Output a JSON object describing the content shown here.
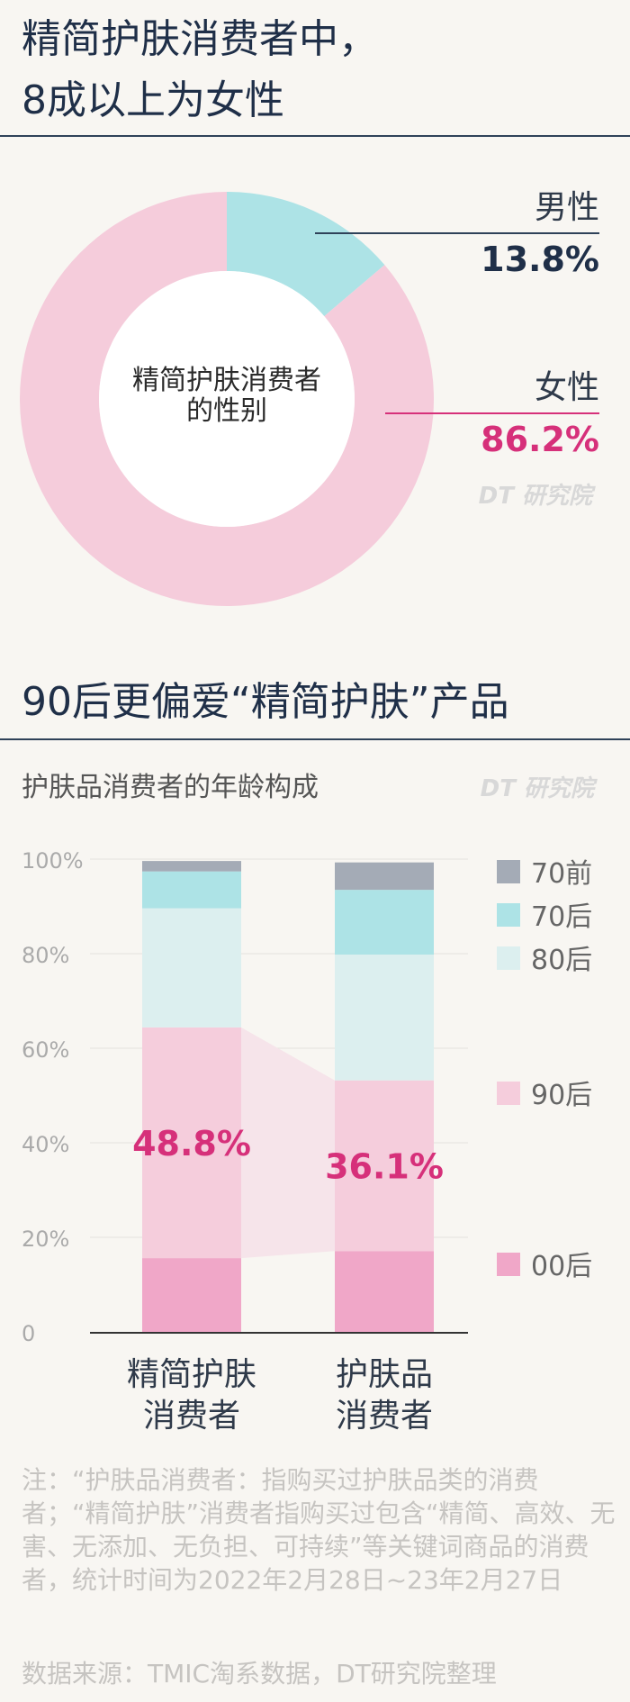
{
  "section1": {
    "title_line1": "精简护肤消费者中，",
    "title_line2": "8成以上为女性"
  },
  "donut": {
    "center_line1": "精简护肤消费者",
    "center_line2": "的性别",
    "watermark": "DT 研究院",
    "colors": {
      "female": "#f5ccdb",
      "male": "#ade3e6",
      "female_value": "#d6307a",
      "male_value": "#1f2f48"
    }
  },
  "section2": {
    "title": "90后更偏爱“精简护肤”产品",
    "subtitle": "护肤品消费者的年龄构成",
    "watermark": "DT 研究院"
  },
  "chart_data": [
    {
      "type": "pie",
      "labels": [
        "男性",
        "女性"
      ],
      "values": [
        13.8,
        86.2
      ],
      "value_labels": [
        "13.8%",
        "86.2%"
      ],
      "colors": [
        "#ade3e6",
        "#f5ccdb"
      ]
    },
    {
      "type": "bar",
      "stacked": true,
      "categories": [
        "精简护肤消费者",
        "护肤品消费者"
      ],
      "category_labels": [
        [
          "精简护肤",
          "消费者"
        ],
        [
          "护肤品",
          "消费者"
        ]
      ],
      "series": [
        {
          "name": "00后",
          "values": [
            15.6,
            17.1
          ],
          "color": "#f0a7c8"
        },
        {
          "name": "90后",
          "values": [
            48.8,
            36.1
          ],
          "color": "#f5cddc"
        },
        {
          "name": "80后",
          "values": [
            25.2,
            26.6
          ],
          "color": "#dcefef"
        },
        {
          "name": "70后",
          "values": [
            7.8,
            13.7
          ],
          "color": "#ade3e6"
        },
        {
          "name": "70前",
          "values": [
            2.2,
            5.8
          ],
          "color": "#a4abb6"
        }
      ],
      "highlight_labels": [
        "48.8%",
        "36.1%"
      ],
      "highlight_color": "#d6307a",
      "y_ticks": [
        "0",
        "20%",
        "40%",
        "60%",
        "80%",
        "100%"
      ],
      "ylim": [
        0,
        100
      ],
      "grid": true,
      "legend_position": "right"
    }
  ],
  "footnote": "注：“护肤品消费者：指购买过护肤品类的消费者；“精简护肤”消费者指购买过包含“精简、高效、无害、无添加、无负担、可持续”等关键词商品的消费者，统计时间为2022年2月28日~23年2月27日",
  "source": "数据来源：TMIC淘系数据，DT研究院整理"
}
